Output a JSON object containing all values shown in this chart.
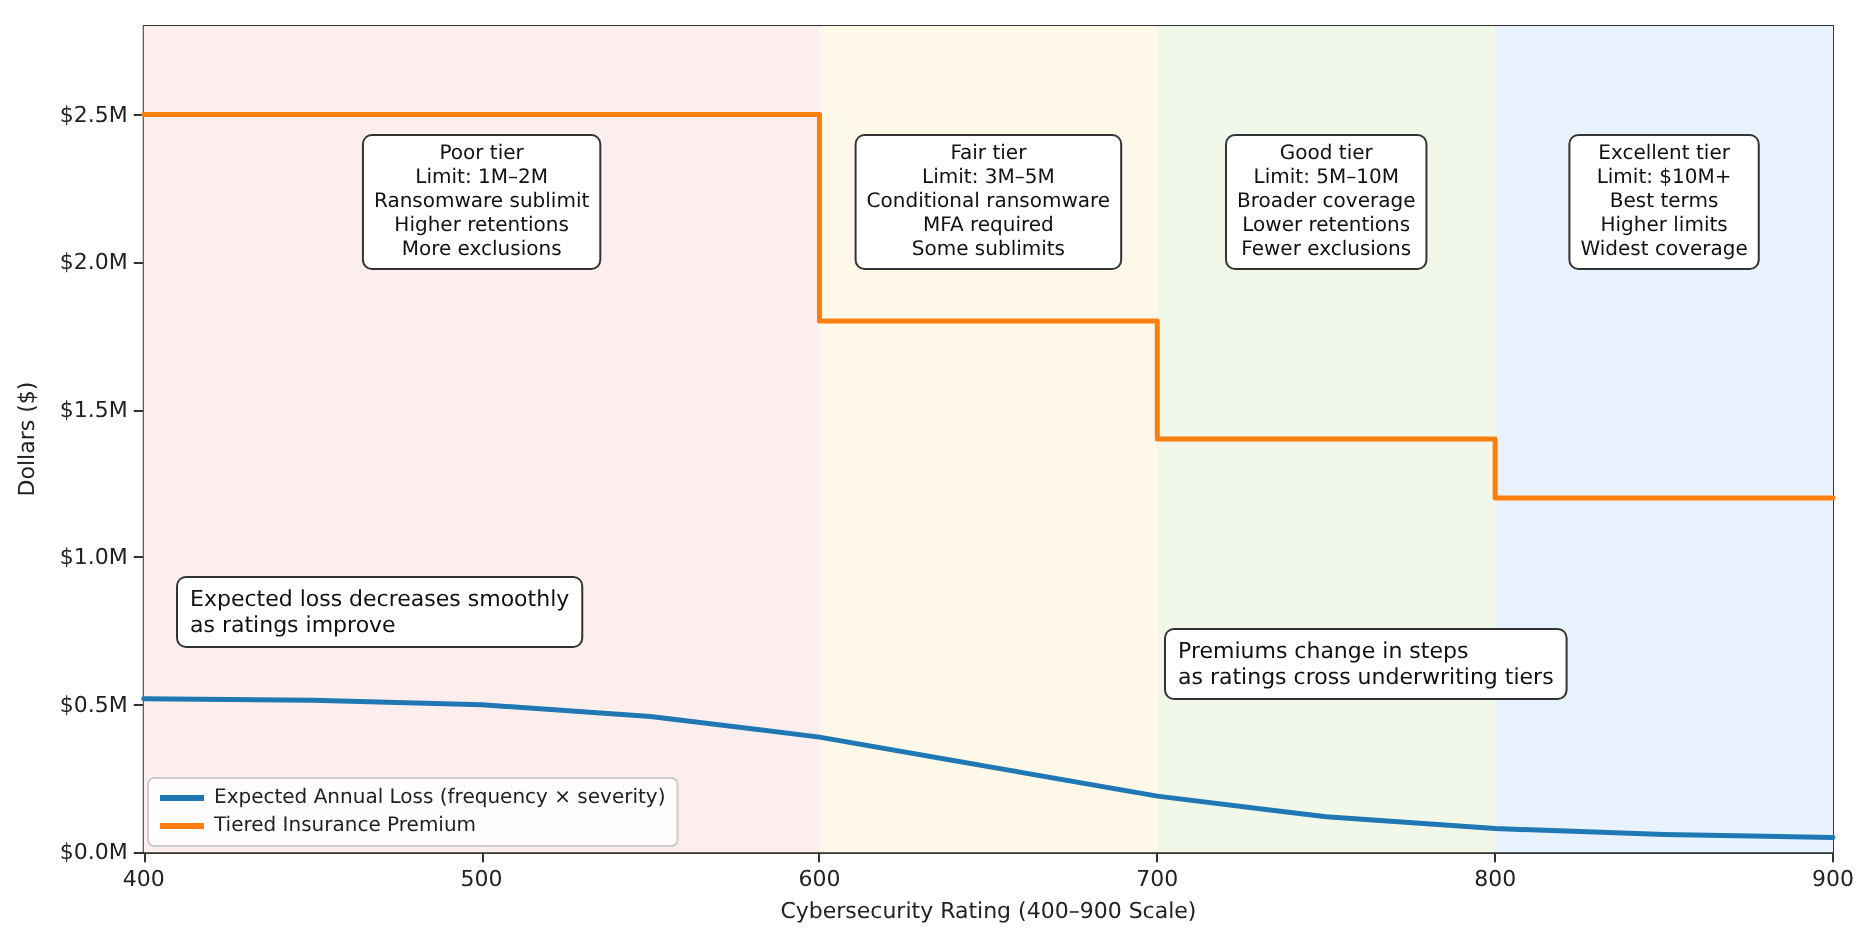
{
  "chart_data": {
    "type": "line",
    "xlabel": "Cybersecurity Rating (400–900 Scale)",
    "ylabel": "Dollars ($)",
    "xlim": [
      400,
      900
    ],
    "xticks": [
      400,
      500,
      600,
      700,
      800,
      900
    ],
    "ylim": [
      0,
      2.8
    ],
    "yticks": [
      {
        "value": 0,
        "label": "$0.0M"
      },
      {
        "value": 0.5,
        "label": "$0.5M"
      },
      {
        "value": 1,
        "label": "$1.0M"
      },
      {
        "value": 1.5,
        "label": "$1.5M"
      },
      {
        "value": 2,
        "label": "$2.0M"
      },
      {
        "value": 2.5,
        "label": "$2.5M"
      }
    ],
    "series": [
      {
        "name": "Expected Annual Loss (frequency × severity)",
        "color": "#1f77b4",
        "x": [
          400,
          450,
          500,
          550,
          600,
          650,
          700,
          750,
          800,
          850,
          900
        ],
        "values": [
          0.52,
          0.515,
          0.5,
          0.46,
          0.39,
          0.29,
          0.19,
          0.12,
          0.08,
          0.06,
          0.05
        ]
      },
      {
        "name": "Tiered Insurance Premium",
        "type": "step",
        "color": "#ff7f0e",
        "x": [
          400,
          600,
          700,
          800,
          900
        ],
        "values": [
          2.5,
          1.8,
          1.4,
          1.2,
          1.2
        ]
      }
    ],
    "bands": [
      {
        "axis": "x",
        "from": 400,
        "to": 600,
        "color": "#fdeeee",
        "label": "Poor tier\nLimit: 1M–2M\nRansomware sublimit\nHigher retentions\nMore exclusions"
      },
      {
        "axis": "x",
        "from": 600,
        "to": 700,
        "color": "#fdf8e8",
        "label": "Fair tier\nLimit: 3M–5M\nConditional ransomware\nMFA required\nSome sublimits"
      },
      {
        "axis": "x",
        "from": 700,
        "to": 800,
        "color": "#f1f7e9",
        "label": "Good tier\nLimit: 5M–10M\nBroader coverage\nLower retentions\nFewer exclusions"
      },
      {
        "axis": "x",
        "from": 800,
        "to": 900,
        "color": "#e8f2fd",
        "label": "Excellent tier\nLimit: $10M+\nBest terms\nHigher limits\nWidest coverage"
      }
    ],
    "annotations": [
      "Expected loss decreases smoothly\nas ratings improve",
      "Premiums change in steps\nas ratings cross underwriting tiers"
    ],
    "legend": "bottom left",
    "grid": false
  }
}
